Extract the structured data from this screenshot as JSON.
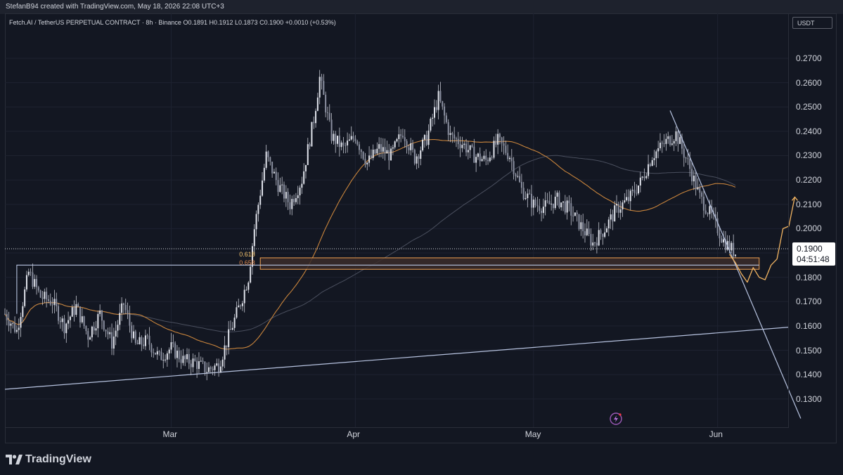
{
  "header": {
    "credit": "StefanB94 created with TradingView.com, May 18, 2026 22:08 UTC+3"
  },
  "symbol": {
    "name": "Fetch.AI / TetherUS PERPETUAL CONTRACT · 8h · Binance",
    "open": "O0.1891",
    "high": "H0.1912",
    "low": "L0.1873",
    "close": "C0.1900",
    "change": "+0.0010 (+0.53%)"
  },
  "currency": "USDT",
  "last_price": {
    "price": "0.1900",
    "countdown": "04:51:48"
  },
  "footer": {
    "brand": "TradingView"
  },
  "colors": {
    "background": "#131722",
    "candle": "#c3c6d0",
    "ma_orange": "#c8843c",
    "ma_gray": "#4a4f5e",
    "trendline": "#b7c3e0",
    "zone_fill": "#3b2b29",
    "zone_line": "#f0a050",
    "projection": "#f3b562"
  },
  "chart_data": {
    "type": "candlestick",
    "timeframe": "8h",
    "y_axis": {
      "ticks": [
        "0.2700",
        "0.2600",
        "0.2500",
        "0.2400",
        "0.2300",
        "0.2200",
        "0.2100",
        "0.2000",
        "0.1900",
        "0.1800",
        "0.1700",
        "0.1600",
        "0.1500",
        "0.1400",
        "0.1300"
      ],
      "range": [
        0.121,
        0.285
      ]
    },
    "x_axis": {
      "ticks": [
        "Mar",
        "Apr",
        "May",
        "Jun"
      ],
      "range": [
        "2026-02-01",
        "2026-06-13"
      ]
    },
    "close_path": [
      [
        "2026-02-01",
        0.165
      ],
      [
        "2026-02-03",
        0.158
      ],
      [
        "2026-02-05",
        0.182
      ],
      [
        "2026-02-07",
        0.172
      ],
      [
        "2026-02-09",
        0.17
      ],
      [
        "2026-02-11",
        0.16
      ],
      [
        "2026-02-13",
        0.168
      ],
      [
        "2026-02-15",
        0.156
      ],
      [
        "2026-02-17",
        0.165
      ],
      [
        "2026-02-19",
        0.153
      ],
      [
        "2026-02-21",
        0.169
      ],
      [
        "2026-02-23",
        0.152
      ],
      [
        "2026-02-25",
        0.154
      ],
      [
        "2026-02-27",
        0.147
      ],
      [
        "2026-03-01",
        0.151
      ],
      [
        "2026-03-03",
        0.146
      ],
      [
        "2026-03-05",
        0.145
      ],
      [
        "2026-03-07",
        0.142
      ],
      [
        "2026-03-09",
        0.144
      ],
      [
        "2026-03-11",
        0.158
      ],
      [
        "2026-03-13",
        0.172
      ],
      [
        "2026-03-14",
        0.18
      ],
      [
        "2026-03-15",
        0.2
      ],
      [
        "2026-03-17",
        0.23
      ],
      [
        "2026-03-19",
        0.218
      ],
      [
        "2026-03-21",
        0.21
      ],
      [
        "2026-03-23",
        0.22
      ],
      [
        "2026-03-25",
        0.245
      ],
      [
        "2026-03-26",
        0.262
      ],
      [
        "2026-03-28",
        0.238
      ],
      [
        "2026-03-30",
        0.233
      ],
      [
        "2026-04-01",
        0.238
      ],
      [
        "2026-04-03",
        0.227
      ],
      [
        "2026-04-05",
        0.233
      ],
      [
        "2026-04-07",
        0.23
      ],
      [
        "2026-04-09",
        0.24
      ],
      [
        "2026-04-11",
        0.229
      ],
      [
        "2026-04-13",
        0.237
      ],
      [
        "2026-04-15",
        0.254
      ],
      [
        "2026-04-17",
        0.238
      ],
      [
        "2026-04-19",
        0.235
      ],
      [
        "2026-04-21",
        0.23
      ],
      [
        "2026-04-23",
        0.228
      ],
      [
        "2026-04-25",
        0.236
      ],
      [
        "2026-04-27",
        0.23
      ],
      [
        "2026-04-29",
        0.216
      ],
      [
        "2026-05-01",
        0.21
      ],
      [
        "2026-05-03",
        0.209
      ],
      [
        "2026-05-05",
        0.212
      ],
      [
        "2026-05-07",
        0.208
      ],
      [
        "2026-05-09",
        0.201
      ],
      [
        "2026-05-11",
        0.194
      ],
      [
        "2026-05-13",
        0.2
      ],
      [
        "2026-05-15",
        0.208
      ],
      [
        "2026-05-17",
        0.212
      ],
      [
        "2026-05-19",
        0.219
      ],
      [
        "2026-05-21",
        0.23
      ],
      [
        "2026-05-23",
        0.235
      ],
      [
        "2026-05-25",
        0.239
      ],
      [
        "2026-05-27",
        0.227
      ],
      [
        "2026-05-29",
        0.213
      ],
      [
        "2026-05-31",
        0.205
      ],
      [
        "2026-06-02",
        0.195
      ],
      [
        "2026-06-04",
        0.19
      ]
    ],
    "annotations": {
      "fib_levels": [
        {
          "label": "0.618",
          "price": 0.1894
        },
        {
          "label": "0.658",
          "price": 0.186
        }
      ],
      "support_zone": [
        0.1833,
        0.188
      ],
      "horizontal_level": 0.185,
      "descending_trendline": [
        [
          "2026-05-24",
          0.2485
        ],
        [
          "2026-06-15",
          0.122
        ]
      ],
      "ascending_trendline": [
        [
          "2026-02-01",
          0.134
        ],
        [
          "2026-06-13",
          0.1595
        ]
      ]
    }
  }
}
